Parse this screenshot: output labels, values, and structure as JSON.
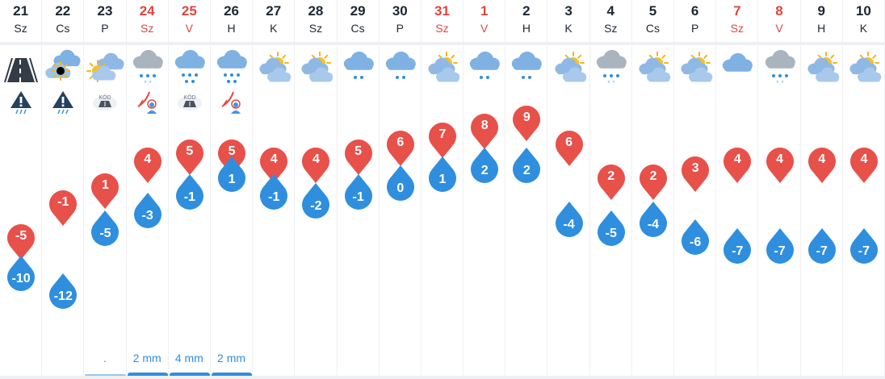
{
  "days": [
    {
      "num": "21",
      "name": "Sz",
      "weekend": false,
      "icon": "road-icon",
      "warn": "storm-warning-icon",
      "max": -5,
      "min": -10,
      "precip": "",
      "bar": false
    },
    {
      "num": "22",
      "name": "Cs",
      "weekend": false,
      "icon": "partly-cloudy-night-icon",
      "warn": "storm-warning-icon",
      "max": -1,
      "min": -12,
      "precip": "",
      "bar": false
    },
    {
      "num": "23",
      "name": "P",
      "weekend": false,
      "icon": "partly-sunny-icon",
      "warn": "fog-icon",
      "warn_text": "KÖD",
      "max": 1,
      "min": -5,
      "precip": ".",
      "bar": true
    },
    {
      "num": "24",
      "name": "Sz",
      "weekend": true,
      "icon": "snow-rain-cloud-icon",
      "warn": "wind-alert-icon",
      "max": 4,
      "min": -3,
      "precip": "2 mm",
      "bar": true
    },
    {
      "num": "25",
      "name": "V",
      "weekend": true,
      "icon": "rain-cloud-icon",
      "warn": "fog-icon",
      "warn_text": "KÖD",
      "max": 5,
      "min": -1,
      "precip": "4 mm",
      "bar": true
    },
    {
      "num": "26",
      "name": "H",
      "weekend": false,
      "icon": "rain-cloud-icon",
      "warn": "wind-alert-icon",
      "max": 5,
      "min": 1,
      "precip": "2 mm",
      "bar": true
    },
    {
      "num": "27",
      "name": "K",
      "weekend": false,
      "icon": "partly-cloudy-icon",
      "warn": "",
      "max": 4,
      "min": -1,
      "precip": "",
      "bar": false
    },
    {
      "num": "28",
      "name": "Sz",
      "weekend": false,
      "icon": "partly-cloudy-icon",
      "warn": "",
      "max": 4,
      "min": -2,
      "precip": "",
      "bar": false
    },
    {
      "num": "29",
      "name": "Cs",
      "weekend": false,
      "icon": "light-rain-cloud-icon",
      "warn": "",
      "max": 5,
      "min": -1,
      "precip": "",
      "bar": false
    },
    {
      "num": "30",
      "name": "P",
      "weekend": false,
      "icon": "light-rain-cloud-icon",
      "warn": "",
      "max": 6,
      "min": 0,
      "precip": "",
      "bar": false
    },
    {
      "num": "31",
      "name": "Sz",
      "weekend": true,
      "icon": "partly-cloudy-icon",
      "warn": "",
      "max": 7,
      "min": 1,
      "precip": "",
      "bar": false
    },
    {
      "num": "1",
      "name": "V",
      "weekend": true,
      "icon": "light-rain-cloud-icon",
      "warn": "",
      "max": 8,
      "min": 2,
      "precip": "",
      "bar": false
    },
    {
      "num": "2",
      "name": "H",
      "weekend": false,
      "icon": "light-rain-cloud-icon",
      "warn": "",
      "max": 9,
      "min": 2,
      "precip": "",
      "bar": false
    },
    {
      "num": "3",
      "name": "K",
      "weekend": false,
      "icon": "partly-cloudy-icon",
      "warn": "",
      "max": 6,
      "min": -4,
      "precip": "",
      "bar": false
    },
    {
      "num": "4",
      "name": "Sz",
      "weekend": false,
      "icon": "snow-rain-cloud-icon",
      "warn": "",
      "max": 2,
      "min": -5,
      "precip": "",
      "bar": false
    },
    {
      "num": "5",
      "name": "Cs",
      "weekend": false,
      "icon": "partly-cloudy-icon",
      "warn": "",
      "max": 2,
      "min": -4,
      "precip": "",
      "bar": false
    },
    {
      "num": "6",
      "name": "P",
      "weekend": false,
      "icon": "partly-cloudy-icon",
      "warn": "",
      "max": 3,
      "min": -6,
      "precip": "",
      "bar": false
    },
    {
      "num": "7",
      "name": "Sz",
      "weekend": true,
      "icon": "cloud-icon",
      "warn": "",
      "max": 4,
      "min": -7,
      "precip": "",
      "bar": false
    },
    {
      "num": "8",
      "name": "V",
      "weekend": true,
      "icon": "snow-rain-cloud-icon",
      "warn": "",
      "max": 4,
      "min": -7,
      "precip": "",
      "bar": false
    },
    {
      "num": "9",
      "name": "H",
      "weekend": false,
      "icon": "partly-cloudy-icon",
      "warn": "",
      "max": 4,
      "min": -7,
      "precip": "",
      "bar": false
    },
    {
      "num": "10",
      "name": "K",
      "weekend": false,
      "icon": "partly-cloudy-icon",
      "warn": "",
      "max": 4,
      "min": -7,
      "precip": "",
      "bar": false
    }
  ],
  "colors": {
    "max_pin": "#e8504a",
    "min_drop": "#2f8fde",
    "weekend_text": "#e0453f",
    "text": "#1d2733"
  }
}
